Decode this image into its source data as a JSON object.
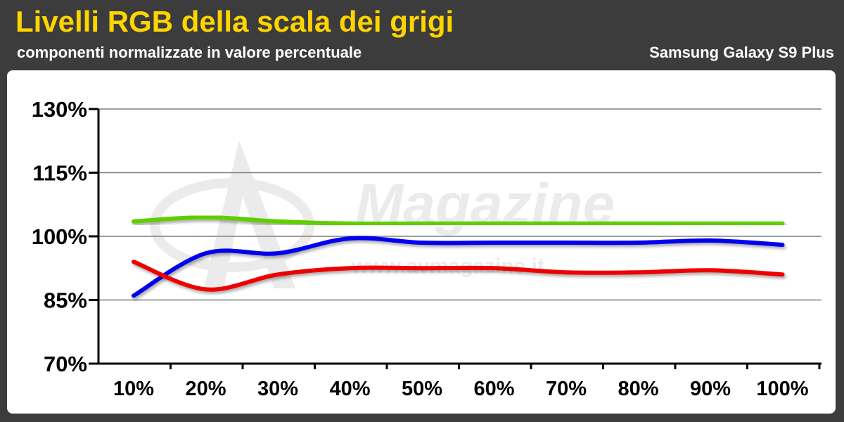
{
  "header": {
    "title": "Livelli RGB della scala dei grigi",
    "subtitle": "componenti normalizzate in valore percentuale",
    "device": "Samsung Galaxy S9 Plus"
  },
  "watermark": {
    "brand": "Magazine",
    "url": "www.avmagazine.it"
  },
  "colors": {
    "title": "#ffd400",
    "background": "#3c3c3c",
    "panel": "#ffffff",
    "grid": "#7f7f7f"
  },
  "chart_data": {
    "type": "line",
    "title": "Livelli RGB della scala dei grigi",
    "subtitle": "componenti normalizzate in valore percentuale",
    "categories": [
      "10%",
      "20%",
      "30%",
      "40%",
      "50%",
      "60%",
      "70%",
      "80%",
      "90%",
      "100%"
    ],
    "ylim": [
      70,
      130
    ],
    "yticks": [
      70,
      85,
      100,
      115,
      130
    ],
    "ytick_labels": [
      "70%",
      "85%",
      "100%",
      "115%",
      "130%"
    ],
    "grid": true,
    "legend": "none",
    "series": [
      {
        "color": "#5fcf00",
        "values": [
          103.5,
          104.5,
          103.5,
          103.0,
          103.0,
          103.0,
          103.0,
          103.0,
          103.0,
          103.0
        ]
      },
      {
        "color": "#0000ee",
        "values": [
          86.0,
          96.0,
          96.0,
          99.5,
          98.5,
          98.5,
          98.5,
          98.5,
          99.0,
          98.0
        ]
      },
      {
        "color": "#ee0000",
        "values": [
          94.0,
          87.5,
          91.0,
          92.5,
          92.5,
          92.5,
          91.5,
          91.5,
          92.0,
          91.0
        ]
      }
    ]
  }
}
